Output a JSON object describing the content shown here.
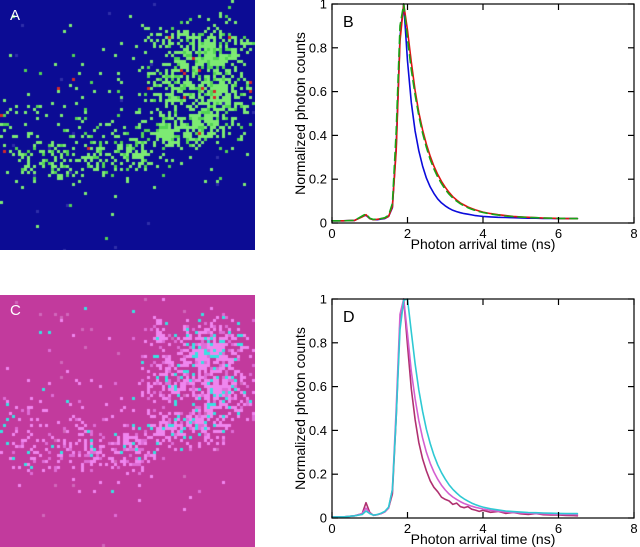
{
  "figure": {
    "background": "#ffffff"
  },
  "panels": {
    "A": {
      "label": "A",
      "type": "flim-intensity-image",
      "bg": "#0c0c94",
      "fg": "#7dea73",
      "fg_alt": "#52d455",
      "speck": "#d42a2a",
      "bg_speck": "#2e2ea8",
      "seed": 7,
      "speck_rate": 0.015,
      "bg_speck_rate": 0.002
    },
    "B": {
      "label": "B"
    },
    "C": {
      "label": "C",
      "type": "flim-lifetime-image",
      "bg": "#c23a9d",
      "fg": "#ef86ef",
      "fg_alt": "#de6cd6",
      "speck": "#38e2e2",
      "bg_speck": "#d167bb",
      "seed": 11,
      "speck_rate": 0.16,
      "bg_speck_rate": 0.004
    },
    "D": {
      "label": "D"
    }
  },
  "shape_blobs": [
    [
      0.82,
      0.22,
      0.16,
      0.14,
      0.95
    ],
    [
      0.86,
      0.38,
      0.14,
      0.13,
      0.95
    ],
    [
      0.79,
      0.5,
      0.13,
      0.1,
      0.85
    ],
    [
      0.68,
      0.33,
      0.13,
      0.13,
      0.75
    ],
    [
      0.63,
      0.15,
      0.08,
      0.07,
      0.45
    ],
    [
      0.66,
      0.53,
      0.12,
      0.1,
      0.8
    ],
    [
      0.52,
      0.6,
      0.12,
      0.1,
      0.65
    ],
    [
      0.38,
      0.62,
      0.12,
      0.09,
      0.55
    ],
    [
      0.24,
      0.63,
      0.12,
      0.09,
      0.45
    ],
    [
      0.1,
      0.62,
      0.1,
      0.1,
      0.4
    ],
    [
      0.04,
      0.5,
      0.06,
      0.09,
      0.3
    ],
    [
      0.3,
      0.5,
      0.1,
      0.08,
      0.25
    ],
    [
      0.15,
      0.45,
      0.08,
      0.07,
      0.18
    ],
    [
      0.45,
      0.45,
      0.45,
      0.35,
      0.06
    ],
    [
      0.5,
      0.55,
      0.5,
      0.3,
      0.05
    ]
  ],
  "chart_data": [
    {
      "id": "B",
      "type": "line",
      "panel_label": "B",
      "xlabel": "Photon arrival time (ns)",
      "ylabel": "Normalized photon counts",
      "xlim": [
        0,
        8
      ],
      "ylim": [
        0,
        1
      ],
      "grid": false,
      "legend": "none",
      "xticks": [
        0,
        2,
        4,
        6,
        8
      ],
      "xtick_labels": [
        "0",
        "2",
        "4",
        "6",
        "8"
      ],
      "yticks": [
        0,
        0.2,
        0.4,
        0.6,
        0.8,
        1
      ],
      "ytick_labels": [
        "0",
        "0.2",
        "0.4",
        "0.6",
        "0.8",
        "1"
      ],
      "x": [
        0,
        0.3,
        0.6,
        0.8,
        0.9,
        1.0,
        1.1,
        1.2,
        1.3,
        1.4,
        1.5,
        1.6,
        1.7,
        1.8,
        1.9,
        2.0,
        2.1,
        2.2,
        2.3,
        2.4,
        2.5,
        2.6,
        2.7,
        2.8,
        2.9,
        3.0,
        3.1,
        3.2,
        3.3,
        3.4,
        3.5,
        3.6,
        3.7,
        3.8,
        3.9,
        4.0,
        4.2,
        4.4,
        4.6,
        4.8,
        5.0,
        5.2,
        5.4,
        5.6,
        5.8,
        6.0,
        6.2,
        6.4,
        6.5
      ],
      "series": [
        {
          "name": "blue-decay",
          "color": "#0b0bdb",
          "y": [
            0.01,
            0.01,
            0.012,
            0.03,
            0.035,
            0.02,
            0.015,
            0.015,
            0.018,
            0.02,
            0.03,
            0.07,
            0.35,
            0.85,
            1.0,
            0.74,
            0.55,
            0.42,
            0.33,
            0.26,
            0.205,
            0.165,
            0.135,
            0.11,
            0.092,
            0.078,
            0.067,
            0.058,
            0.052,
            0.047,
            0.043,
            0.04,
            0.037,
            0.034,
            0.032,
            0.03,
            0.028,
            0.026,
            0.025,
            0.024,
            0.023,
            0.022,
            0.022,
            0.021,
            0.021,
            0.02,
            0.02,
            0.02,
            0.02
          ]
        },
        {
          "name": "red-decay",
          "color": "#e01212",
          "y": [
            0.01,
            0.01,
            0.012,
            0.028,
            0.038,
            0.02,
            0.015,
            0.017,
            0.02,
            0.022,
            0.03,
            0.075,
            0.33,
            0.83,
            1.0,
            0.88,
            0.735,
            0.605,
            0.505,
            0.425,
            0.36,
            0.305,
            0.26,
            0.222,
            0.19,
            0.163,
            0.14,
            0.12,
            0.105,
            0.092,
            0.082,
            0.073,
            0.066,
            0.06,
            0.055,
            0.05,
            0.043,
            0.038,
            0.034,
            0.03,
            0.028,
            0.026,
            0.024,
            0.023,
            0.022,
            0.021,
            0.02,
            0.02,
            0.02
          ]
        },
        {
          "name": "green-decay",
          "color": "#17a517",
          "dash": "8 5",
          "y": [
            0.01,
            0.01,
            0.012,
            0.032,
            0.042,
            0.022,
            0.016,
            0.018,
            0.02,
            0.024,
            0.035,
            0.09,
            0.42,
            0.9,
            1.0,
            0.84,
            0.7,
            0.585,
            0.49,
            0.41,
            0.345,
            0.29,
            0.247,
            0.21,
            0.18,
            0.153,
            0.132,
            0.114,
            0.1,
            0.088,
            0.078,
            0.07,
            0.063,
            0.057,
            0.052,
            0.048,
            0.041,
            0.036,
            0.032,
            0.029,
            0.027,
            0.025,
            0.024,
            0.023,
            0.022,
            0.021,
            0.021,
            0.02,
            0.02
          ]
        }
      ]
    },
    {
      "id": "D",
      "type": "line",
      "panel_label": "D",
      "xlabel": "Photon arrival time (ns)",
      "ylabel": "Normalized photon counts",
      "xlim": [
        0,
        8
      ],
      "ylim": [
        0,
        1
      ],
      "grid": false,
      "legend": "none",
      "xticks": [
        0,
        2,
        4,
        6,
        8
      ],
      "xtick_labels": [
        "0",
        "2",
        "4",
        "6",
        "8"
      ],
      "yticks": [
        0,
        0.2,
        0.4,
        0.6,
        0.8,
        1
      ],
      "ytick_labels": [
        "0",
        "0.2",
        "0.4",
        "0.6",
        "0.8",
        "1"
      ],
      "x": [
        0,
        0.3,
        0.6,
        0.8,
        0.9,
        1.0,
        1.1,
        1.2,
        1.3,
        1.4,
        1.5,
        1.6,
        1.7,
        1.8,
        1.9,
        2.0,
        2.1,
        2.2,
        2.3,
        2.4,
        2.5,
        2.6,
        2.7,
        2.8,
        2.9,
        3.0,
        3.1,
        3.2,
        3.3,
        3.4,
        3.5,
        3.6,
        3.7,
        3.8,
        3.9,
        4.0,
        4.2,
        4.4,
        4.6,
        4.8,
        5.0,
        5.2,
        5.4,
        5.6,
        5.8,
        6.0,
        6.2,
        6.4,
        6.5
      ],
      "series": [
        {
          "name": "dark-magenta-decay",
          "color": "#b03070",
          "y": [
            0.005,
            0.005,
            0.01,
            0.02,
            0.07,
            0.025,
            0.012,
            0.015,
            0.02,
            0.028,
            0.045,
            0.11,
            0.46,
            0.9,
            1.0,
            0.79,
            0.59,
            0.45,
            0.345,
            0.27,
            0.215,
            0.17,
            0.14,
            0.12,
            0.095,
            0.085,
            0.078,
            0.062,
            0.068,
            0.052,
            0.047,
            0.052,
            0.04,
            0.036,
            0.03,
            0.035,
            0.026,
            0.03,
            0.021,
            0.025,
            0.019,
            0.016,
            0.02,
            0.015,
            0.014,
            0.014,
            0.012,
            0.011,
            0.01
          ]
        },
        {
          "name": "violet-decay",
          "color": "#d45fd0",
          "y": [
            0.005,
            0.005,
            0.01,
            0.02,
            0.045,
            0.022,
            0.013,
            0.016,
            0.02,
            0.028,
            0.045,
            0.13,
            0.5,
            0.93,
            1.0,
            0.84,
            0.67,
            0.545,
            0.445,
            0.365,
            0.3,
            0.25,
            0.21,
            0.177,
            0.15,
            0.128,
            0.11,
            0.096,
            0.085,
            0.075,
            0.066,
            0.06,
            0.054,
            0.049,
            0.045,
            0.041,
            0.035,
            0.031,
            0.028,
            0.025,
            0.023,
            0.022,
            0.02,
            0.019,
            0.018,
            0.017,
            0.016,
            0.016,
            0.015
          ]
        },
        {
          "name": "cyan-decay",
          "color": "#2ec9d3",
          "y": [
            0.005,
            0.005,
            0.01,
            0.016,
            0.032,
            0.02,
            0.013,
            0.016,
            0.022,
            0.03,
            0.05,
            0.13,
            0.46,
            0.86,
            0.995,
            1.0,
            0.85,
            0.705,
            0.585,
            0.487,
            0.405,
            0.34,
            0.287,
            0.243,
            0.207,
            0.177,
            0.152,
            0.131,
            0.114,
            0.099,
            0.087,
            0.077,
            0.068,
            0.061,
            0.055,
            0.05,
            0.042,
            0.037,
            0.032,
            0.029,
            0.027,
            0.025,
            0.024,
            0.023,
            0.022,
            0.021,
            0.02,
            0.02,
            0.02
          ]
        }
      ]
    }
  ]
}
